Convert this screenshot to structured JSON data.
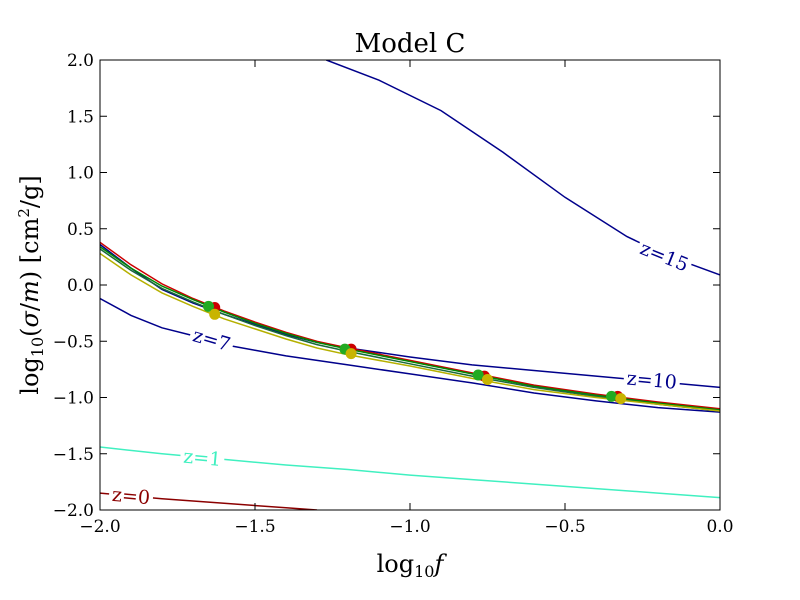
{
  "chart_data": {
    "type": "line",
    "title": "Model C",
    "xlabel": "log10f",
    "ylabel": "log10(σ/m) [cm²/g]",
    "xlim": [
      -2.0,
      0.0
    ],
    "ylim": [
      -2.0,
      2.0
    ],
    "xticks": [
      "−2.0",
      "−1.5",
      "−1.0",
      "−0.5",
      "0.0"
    ],
    "xtick_values": [
      -2.0,
      -1.5,
      -1.0,
      -0.5,
      0.0
    ],
    "yticks": [
      "−2.0",
      "−1.5",
      "−1.0",
      "−0.5",
      "0.0",
      "0.5",
      "1.0",
      "1.5",
      "2.0"
    ],
    "ytick_values": [
      -2.0,
      -1.5,
      -1.0,
      -0.5,
      0.0,
      0.5,
      1.0,
      1.5,
      2.0
    ],
    "contours": [
      {
        "name": "z=15",
        "color": "#00008b",
        "label_at": [
          -0.18,
          0.25
        ],
        "points": [
          [
            -1.27,
            2.0
          ],
          [
            -1.1,
            1.82
          ],
          [
            -0.9,
            1.55
          ],
          [
            -0.7,
            1.18
          ],
          [
            -0.5,
            0.78
          ],
          [
            -0.3,
            0.43
          ],
          [
            -0.2,
            0.3
          ],
          [
            -0.1,
            0.19
          ],
          [
            0.0,
            0.09
          ]
        ]
      },
      {
        "name": "z=10",
        "color": "#00008b",
        "label_at": [
          -0.22,
          -0.85
        ],
        "points": [
          [
            -2.0,
            0.36
          ],
          [
            -1.9,
            0.15
          ],
          [
            -1.8,
            -0.04
          ],
          [
            -1.7,
            -0.16
          ],
          [
            -1.6,
            -0.26
          ],
          [
            -1.5,
            -0.35
          ],
          [
            -1.4,
            -0.44
          ],
          [
            -1.3,
            -0.51
          ],
          [
            -1.2,
            -0.56
          ],
          [
            -1.0,
            -0.64
          ],
          [
            -0.8,
            -0.71
          ],
          [
            -0.6,
            -0.76
          ],
          [
            -0.4,
            -0.81
          ],
          [
            -0.2,
            -0.86
          ],
          [
            0.0,
            -0.91
          ]
        ]
      },
      {
        "name": "z=7",
        "color": "#00008b",
        "label_at": [
          -1.64,
          -0.49
        ],
        "points": [
          [
            -2.0,
            -0.12
          ],
          [
            -1.9,
            -0.27
          ],
          [
            -1.8,
            -0.38
          ],
          [
            -1.7,
            -0.45
          ],
          [
            -1.6,
            -0.53
          ],
          [
            -1.5,
            -0.58
          ],
          [
            -1.4,
            -0.63
          ],
          [
            -1.3,
            -0.67
          ],
          [
            -1.2,
            -0.71
          ],
          [
            -1.0,
            -0.79
          ],
          [
            -0.8,
            -0.87
          ],
          [
            -0.6,
            -0.96
          ],
          [
            -0.4,
            -1.03
          ],
          [
            -0.2,
            -1.09
          ],
          [
            0.0,
            -1.13
          ]
        ]
      },
      {
        "name": "z=1",
        "color": "#40f0c0",
        "label_at": [
          -1.67,
          -1.54
        ],
        "points": [
          [
            -2.0,
            -1.44
          ],
          [
            -1.8,
            -1.5
          ],
          [
            -1.6,
            -1.55
          ],
          [
            -1.4,
            -1.6
          ],
          [
            -1.2,
            -1.64
          ],
          [
            -1.0,
            -1.69
          ],
          [
            -0.8,
            -1.73
          ],
          [
            -0.6,
            -1.77
          ],
          [
            -0.4,
            -1.81
          ],
          [
            -0.2,
            -1.85
          ],
          [
            0.0,
            -1.89
          ]
        ]
      },
      {
        "name": "z=0",
        "color": "#8b0000",
        "label_at": [
          -1.9,
          -1.88
        ],
        "points": [
          [
            -2.0,
            -1.85
          ],
          [
            -1.8,
            -1.9
          ],
          [
            -1.6,
            -1.94
          ],
          [
            -1.4,
            -1.98
          ],
          [
            -1.3,
            -2.0
          ]
        ]
      }
    ],
    "model_curves": [
      {
        "color": "#cc0000",
        "points": [
          [
            -2.0,
            0.38
          ],
          [
            -1.9,
            0.18
          ],
          [
            -1.8,
            0.01
          ],
          [
            -1.7,
            -0.12
          ],
          [
            -1.6,
            -0.23
          ],
          [
            -1.5,
            -0.33
          ],
          [
            -1.4,
            -0.42
          ],
          [
            -1.3,
            -0.5
          ],
          [
            -1.2,
            -0.56
          ],
          [
            -1.0,
            -0.67
          ],
          [
            -0.8,
            -0.78
          ],
          [
            -0.6,
            -0.89
          ],
          [
            -0.4,
            -0.97
          ],
          [
            -0.2,
            -1.04
          ],
          [
            0.0,
            -1.1
          ]
        ]
      },
      {
        "color": "#008800",
        "points": [
          [
            -2.0,
            0.34
          ],
          [
            -1.9,
            0.15
          ],
          [
            -1.8,
            -0.01
          ],
          [
            -1.7,
            -0.13
          ],
          [
            -1.6,
            -0.24
          ],
          [
            -1.5,
            -0.34
          ],
          [
            -1.4,
            -0.43
          ],
          [
            -1.3,
            -0.51
          ],
          [
            -1.2,
            -0.57
          ],
          [
            -1.0,
            -0.68
          ],
          [
            -0.8,
            -0.79
          ],
          [
            -0.6,
            -0.9
          ],
          [
            -0.4,
            -0.98
          ],
          [
            -0.2,
            -1.05
          ],
          [
            0.0,
            -1.11
          ]
        ]
      },
      {
        "color": "#1a6b3a",
        "points": [
          [
            -2.0,
            0.32
          ],
          [
            -1.9,
            0.13
          ],
          [
            -1.8,
            -0.03
          ],
          [
            -1.7,
            -0.15
          ],
          [
            -1.6,
            -0.26
          ],
          [
            -1.5,
            -0.36
          ],
          [
            -1.4,
            -0.45
          ],
          [
            -1.3,
            -0.53
          ],
          [
            -1.2,
            -0.59
          ],
          [
            -1.0,
            -0.7
          ],
          [
            -0.8,
            -0.81
          ],
          [
            -0.6,
            -0.91
          ],
          [
            -0.4,
            -0.99
          ],
          [
            -0.2,
            -1.06
          ],
          [
            0.0,
            -1.12
          ]
        ]
      },
      {
        "color": "#b5b000",
        "points": [
          [
            -2.0,
            0.28
          ],
          [
            -1.9,
            0.09
          ],
          [
            -1.8,
            -0.07
          ],
          [
            -1.7,
            -0.19
          ],
          [
            -1.6,
            -0.3
          ],
          [
            -1.5,
            -0.39
          ],
          [
            -1.4,
            -0.48
          ],
          [
            -1.3,
            -0.56
          ],
          [
            -1.2,
            -0.62
          ],
          [
            -1.0,
            -0.72
          ],
          [
            -0.8,
            -0.83
          ],
          [
            -0.6,
            -0.93
          ],
          [
            -0.4,
            -1.0
          ],
          [
            -0.2,
            -1.06
          ],
          [
            0.0,
            -1.12
          ]
        ]
      }
    ],
    "points": [
      {
        "x": -1.63,
        "y": -0.2,
        "color": "#cc0000"
      },
      {
        "x": -1.19,
        "y": -0.57,
        "color": "#cc0000"
      },
      {
        "x": -0.76,
        "y": -0.81,
        "color": "#cc0000"
      },
      {
        "x": -0.33,
        "y": -0.99,
        "color": "#cc0000"
      },
      {
        "x": -1.65,
        "y": -0.19,
        "color": "#22aa22"
      },
      {
        "x": -1.21,
        "y": -0.57,
        "color": "#22aa22"
      },
      {
        "x": -0.78,
        "y": -0.8,
        "color": "#22aa22"
      },
      {
        "x": -0.35,
        "y": -0.99,
        "color": "#22aa22"
      },
      {
        "x": -1.63,
        "y": -0.26,
        "color": "#c8b400"
      },
      {
        "x": -1.19,
        "y": -0.61,
        "color": "#c8b400"
      },
      {
        "x": -0.75,
        "y": -0.84,
        "color": "#c8b400"
      },
      {
        "x": -0.32,
        "y": -1.01,
        "color": "#c8b400"
      }
    ]
  }
}
